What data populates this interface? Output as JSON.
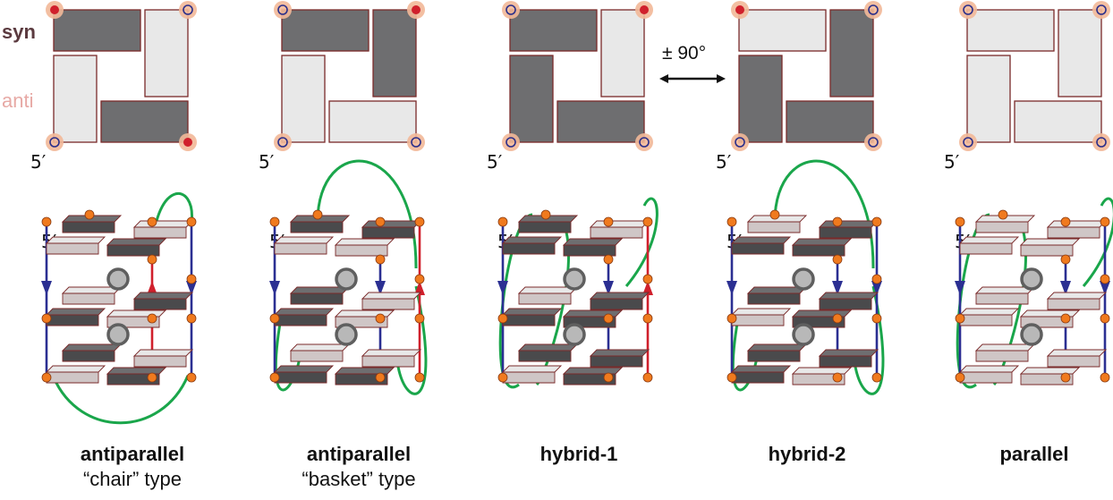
{
  "legend": {
    "syn": "syn",
    "anti": "anti"
  },
  "five_prime": "5′",
  "rotation": "± 90°",
  "colors": {
    "syn_fill": "#6e6e70",
    "anti_fill": "#e8e8e8",
    "outline": "#7a2a2a",
    "marker_ring": "#f2b898",
    "marker_dot": "#d0202c",
    "marker_open": "#2b2f8a",
    "strand_blue": "#2b2f92",
    "strand_red": "#d0202c",
    "loop_green": "#1aa64b",
    "node_orange": "#f07a1e",
    "ion_grey": "#b8b8b8"
  },
  "topologies": [
    {
      "title": "antiparallel",
      "subtitle": "“chair” type",
      "syn": {
        "top": true,
        "right": false,
        "bottom": true,
        "left": false
      },
      "corners": {
        "tl": "dot",
        "tr": "open",
        "bl": "open",
        "br": "dot"
      },
      "strands": [
        "blue-down",
        "red-up",
        "blue-down"
      ],
      "loop": "bottom"
    },
    {
      "title": "antiparallel",
      "subtitle": "“basket” type",
      "syn": {
        "top": true,
        "right": true,
        "bottom": false,
        "left": false
      },
      "corners": {
        "tl": "open",
        "tr": "dot",
        "bl": "open",
        "br": "open"
      },
      "strands": [
        "blue-down",
        "blue-down",
        "red-up"
      ],
      "loop": "top"
    },
    {
      "title": "hybrid-1",
      "subtitle": "",
      "syn": {
        "top": true,
        "right": false,
        "bottom": true,
        "left": true
      },
      "corners": {
        "tl": "open",
        "tr": "dot",
        "bl": "open",
        "br": "open"
      },
      "strands": [
        "blue-down",
        "blue-down",
        "red-up"
      ],
      "loop": "side"
    },
    {
      "title": "hybrid-2",
      "subtitle": "",
      "syn": {
        "top": false,
        "right": true,
        "bottom": true,
        "left": true
      },
      "corners": {
        "tl": "dot",
        "tr": "open",
        "bl": "open",
        "br": "open"
      },
      "strands": [
        "blue-down",
        "blue-down",
        "blue-down"
      ],
      "loop": "top"
    },
    {
      "title": "parallel",
      "subtitle": "",
      "syn": {
        "top": false,
        "right": false,
        "bottom": false,
        "left": false
      },
      "corners": {
        "tl": "open",
        "tr": "open",
        "bl": "open",
        "br": "open"
      },
      "strands": [
        "blue-down",
        "blue-down",
        "blue-down"
      ],
      "loop": "side"
    }
  ]
}
